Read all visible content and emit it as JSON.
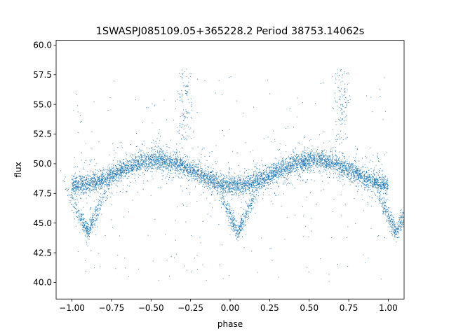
{
  "chart_data": {
    "type": "scatter",
    "title": "1SWASPJ085109.05+365228.2 Period 38753.14062s",
    "xlabel": "phase",
    "ylabel": "flux",
    "xlim": [
      -1.1,
      1.1
    ],
    "ylim": [
      38.6,
      60.4
    ],
    "x_ticks": [
      -1.0,
      -0.75,
      -0.5,
      -0.25,
      0.0,
      0.25,
      0.5,
      0.75,
      1.0
    ],
    "x_tick_labels": [
      "−1.00",
      "−0.75",
      "−0.50",
      "−0.25",
      "0.00",
      "0.25",
      "0.50",
      "0.75",
      "1.00"
    ],
    "y_ticks": [
      40.0,
      42.5,
      45.0,
      47.5,
      50.0,
      52.5,
      55.0,
      57.5,
      60.0
    ],
    "y_tick_labels": [
      "40.0",
      "42.5",
      "45.0",
      "47.5",
      "50.0",
      "52.5",
      "55.0",
      "57.5",
      "60.0"
    ],
    "grid": false,
    "marker_color": "#1f77b4",
    "series": [
      {
        "description_points": "dense light curve folded over two cycles; main band min ~48.2 at phase 0 and ±1, max ~50.3 at phase ±0.5; lower branch down to ~43.8 near phase 0 and ±1; spike excursions up to ~58 near phase -0.3 and 0.7",
        "points": [
          [
            -1.0,
            48.3
          ],
          [
            -0.9,
            48.4
          ],
          [
            -0.8,
            48.9
          ],
          [
            -0.7,
            49.4
          ],
          [
            -0.6,
            49.9
          ],
          [
            -0.5,
            50.3
          ],
          [
            -0.4,
            50.2
          ],
          [
            -0.3,
            49.9
          ],
          [
            -0.2,
            49.5
          ],
          [
            -0.1,
            48.9
          ],
          [
            0.0,
            48.2
          ],
          [
            0.1,
            48.3
          ],
          [
            0.2,
            48.8
          ],
          [
            0.3,
            49.4
          ],
          [
            0.4,
            49.9
          ],
          [
            0.5,
            50.3
          ],
          [
            0.6,
            50.2
          ],
          [
            0.7,
            49.9
          ],
          [
            0.8,
            49.5
          ],
          [
            0.9,
            48.9
          ],
          [
            1.0,
            48.2
          ],
          [
            -0.95,
            44.2
          ],
          [
            -0.9,
            43.9
          ],
          [
            -0.85,
            44.0
          ],
          [
            0.0,
            44.0
          ],
          [
            0.05,
            43.8
          ],
          [
            0.1,
            44.0
          ],
          [
            -0.3,
            57.5
          ],
          [
            -0.28,
            56.5
          ],
          [
            0.7,
            57.8
          ],
          [
            0.72,
            56.3
          ]
        ]
      }
    ]
  }
}
